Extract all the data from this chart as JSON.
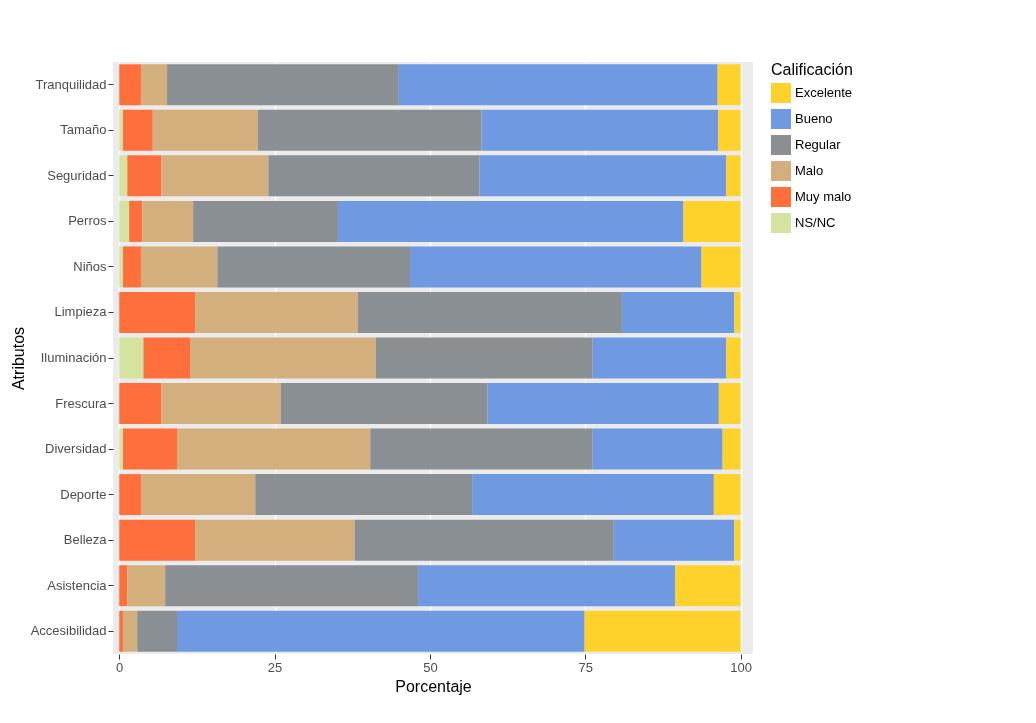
{
  "chart_data": {
    "type": "bar",
    "orientation": "horizontal",
    "stacked": true,
    "categories": [
      "Tranquilidad",
      "Tamaño",
      "Seguridad",
      "Perros",
      "Niños",
      "Limpieza",
      "Iluminación",
      "Frescura",
      "Diversidad",
      "Deporte",
      "Belleza",
      "Asistencia",
      "Accesibilidad"
    ],
    "series": [
      {
        "name": "NS/NC",
        "color": "#d4e4a0",
        "values": [
          0,
          0.6,
          1.3,
          1.6,
          0.6,
          0,
          3.9,
          0,
          0.6,
          0,
          0,
          0,
          0
        ]
      },
      {
        "name": "Muy malo",
        "color": "#ff6f3c",
        "values": [
          3.5,
          4.8,
          5.5,
          2.1,
          2.9,
          12.2,
          7.5,
          6.8,
          8.7,
          3.5,
          12.2,
          1.3,
          0.6
        ]
      },
      {
        "name": "Malo",
        "color": "#d3af7e",
        "values": [
          4.2,
          16.9,
          17.2,
          8.2,
          12.3,
          26.2,
          29.9,
          19.2,
          31.1,
          18.4,
          25.7,
          6.1,
          2.3
        ]
      },
      {
        "name": "Regular",
        "color": "#8a8f94",
        "values": [
          37.3,
          36.0,
          34.0,
          23.3,
          31.0,
          42.5,
          34.9,
          33.3,
          35.8,
          34.9,
          41.7,
          40.7,
          6.4
        ]
      },
      {
        "name": "Bueno",
        "color": "#6f99e1",
        "values": [
          51.3,
          38.1,
          39.7,
          55.6,
          46.9,
          18.1,
          21.5,
          37.2,
          20.9,
          38.9,
          19.4,
          41.4,
          65.6
        ]
      },
      {
        "name": "Excelente",
        "color": "#ffd22b",
        "values": [
          3.7,
          3.6,
          2.3,
          9.2,
          6.3,
          1.0,
          2.3,
          3.5,
          2.9,
          4.3,
          1.0,
          10.5,
          25.1
        ]
      }
    ],
    "xlim": [
      -1,
      102
    ],
    "xticks": [
      0,
      25,
      50,
      75,
      100
    ],
    "xlabel": "Porcentaje",
    "ylabel": "Atributos",
    "legend_title": "Calificación",
    "legend": "right",
    "grid": "x"
  }
}
